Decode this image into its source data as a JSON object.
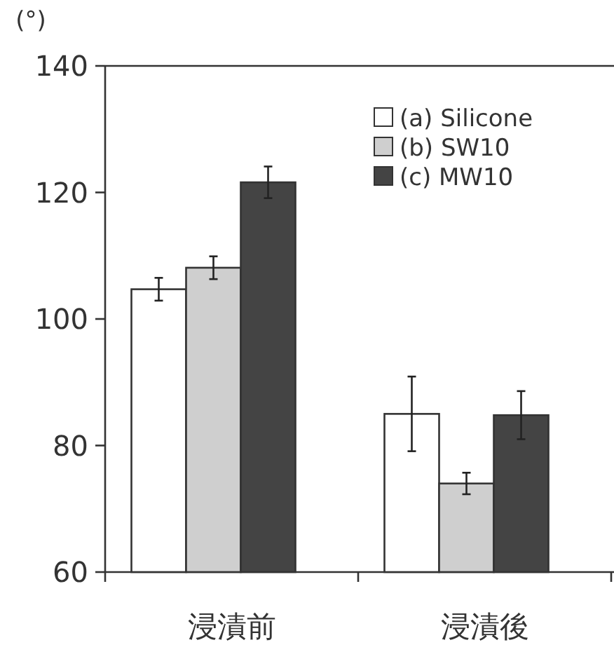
{
  "chart_data": {
    "type": "bar",
    "ylabel": "(°)",
    "categories": [
      "浸漬前",
      "浸漬後"
    ],
    "series": [
      {
        "name": "(a) Silicone",
        "color": "#ffffff",
        "values": [
          104.7,
          85.0
        ],
        "errors": [
          1.8,
          5.9
        ]
      },
      {
        "name": "(b) SW10",
        "color": "#cfcfcf",
        "values": [
          108.1,
          74.0
        ],
        "errors": [
          1.8,
          1.7
        ]
      },
      {
        "name": "(c) MW10",
        "color": "#444444",
        "values": [
          121.6,
          84.8
        ],
        "errors": [
          2.5,
          3.8
        ]
      }
    ],
    "ylim": [
      60,
      140
    ],
    "yticks": [
      60,
      80,
      100,
      120,
      140
    ],
    "grid": false,
    "legend": "top right"
  }
}
